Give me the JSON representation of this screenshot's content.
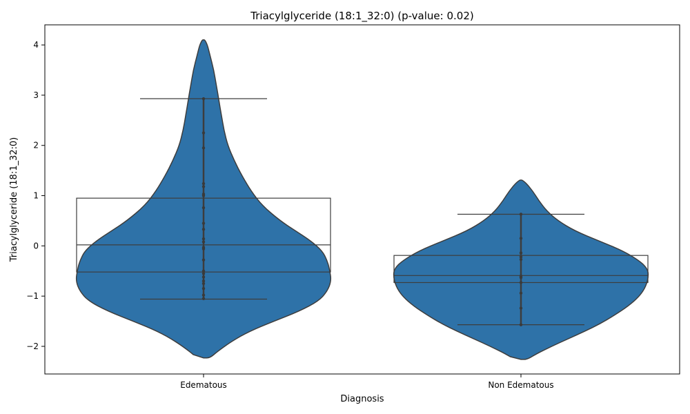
{
  "chart_data": {
    "type": "violin",
    "title": "Triacylglyceride (18:1_32:0) (p-value: 0.02)",
    "xlabel": "Diagnosis",
    "ylabel": "Triacylglyceride (18:1_32:0)",
    "ylim": [
      -2.55,
      4.4
    ],
    "yticks": [
      -2,
      -1,
      0,
      1,
      2,
      3,
      4
    ],
    "ytick_labels": [
      "−2",
      "−1",
      "0",
      "1",
      "2",
      "3",
      "4"
    ],
    "categories": [
      "Edematous",
      "Non Edematous"
    ],
    "fill_color": "#2e72a8",
    "line_color": "#3d3d3d",
    "groups": [
      {
        "name": "Edematous",
        "box": {
          "q1": -0.52,
          "median": 0.02,
          "q3": 0.95,
          "whisker_low": -1.06,
          "whisker_high": 2.93
        },
        "violin": {
          "y": [
            -2.23,
            -2.1,
            -1.9,
            -1.7,
            -1.5,
            -1.3,
            -1.1,
            -0.9,
            -0.7,
            -0.5,
            -0.3,
            -0.1,
            0.1,
            0.3,
            0.5,
            0.8,
            1.1,
            1.4,
            1.7,
            2.0,
            2.3,
            2.6,
            2.9,
            3.2,
            3.5,
            3.8,
            4.0,
            4.1
          ],
          "width": [
            0.05,
            0.11,
            0.22,
            0.36,
            0.55,
            0.75,
            0.9,
            0.97,
            1.0,
            0.99,
            0.97,
            0.93,
            0.84,
            0.72,
            0.6,
            0.46,
            0.37,
            0.3,
            0.24,
            0.19,
            0.16,
            0.14,
            0.12,
            0.1,
            0.08,
            0.05,
            0.03,
            0.01
          ]
        },
        "points": [
          2.93,
          2.25,
          1.95,
          1.24,
          1.18,
          1.03,
          1.0,
          0.76,
          0.45,
          0.33,
          0.14,
          0.08,
          -0.03,
          -0.06,
          -0.28,
          -0.5,
          -0.55,
          -0.62,
          -0.7,
          -0.75,
          -0.85,
          -0.98,
          -1.05
        ]
      },
      {
        "name": "Non Edematous",
        "box": {
          "q1": -0.73,
          "median": -0.59,
          "q3": -0.19,
          "whisker_low": -1.57,
          "whisker_high": 0.63
        },
        "violin": {
          "y": [
            -2.26,
            -2.15,
            -2.0,
            -1.85,
            -1.7,
            -1.55,
            -1.4,
            -1.2,
            -1.0,
            -0.8,
            -0.6,
            -0.45,
            -0.3,
            -0.1,
            0.1,
            0.3,
            0.5,
            0.7,
            0.9,
            1.1,
            1.25,
            1.31
          ],
          "width": [
            0.05,
            0.12,
            0.24,
            0.37,
            0.5,
            0.62,
            0.72,
            0.84,
            0.93,
            0.98,
            1.0,
            0.99,
            0.93,
            0.8,
            0.61,
            0.42,
            0.29,
            0.2,
            0.14,
            0.09,
            0.04,
            0.01
          ]
        },
        "points": [
          0.63,
          0.15,
          -0.14,
          -0.22,
          -0.27,
          -0.6,
          -0.63,
          -0.73,
          -0.94,
          -1.24,
          -1.57
        ]
      }
    ]
  }
}
